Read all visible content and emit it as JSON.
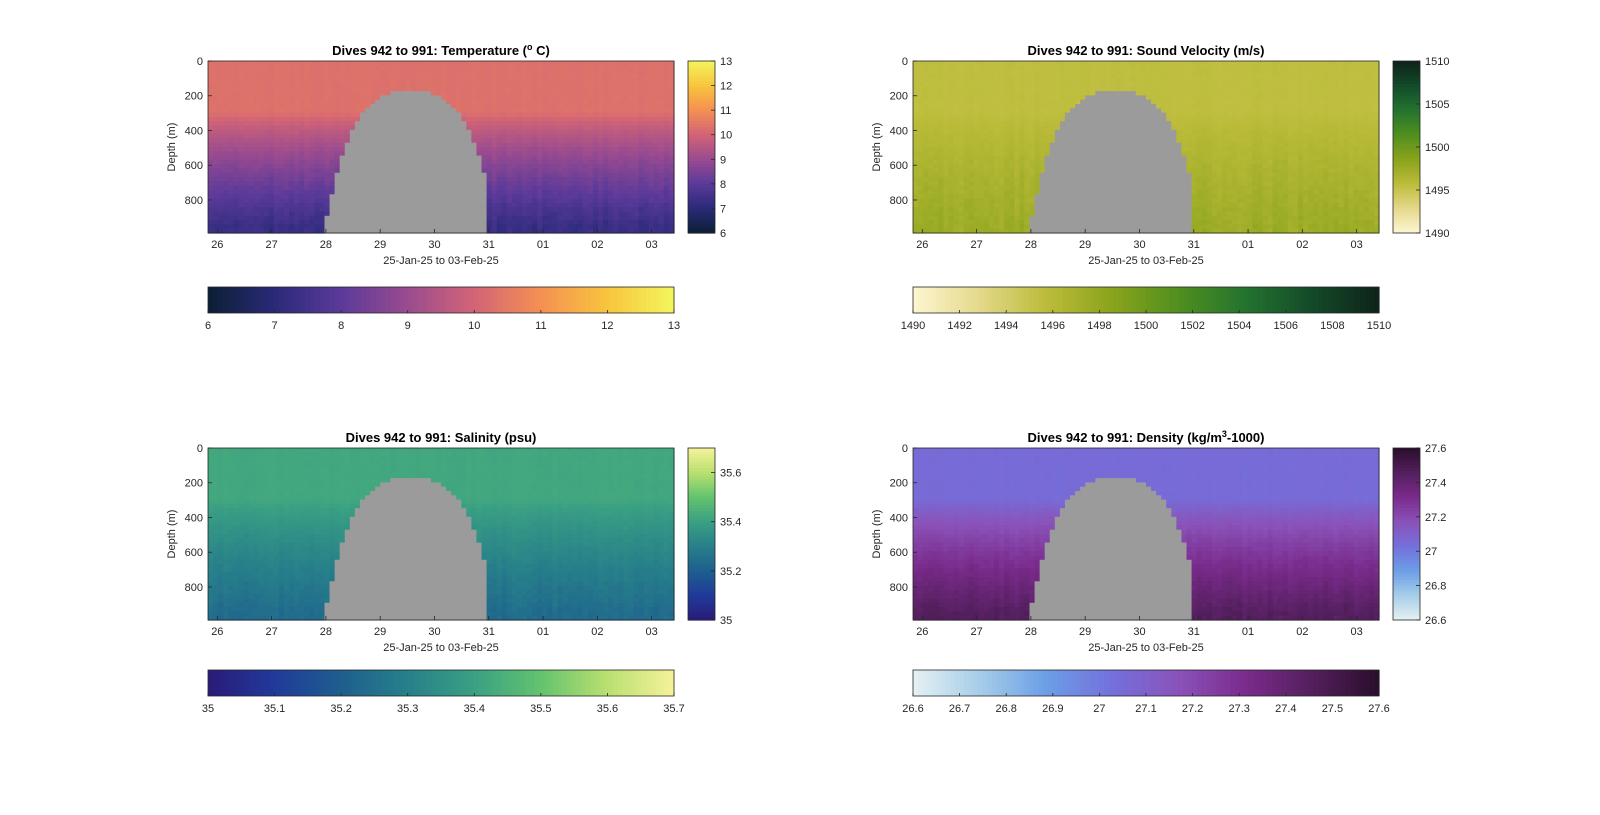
{
  "chart_data": [
    {
      "type": "heatmap",
      "title": "Dives 942 to 991: Temperature (",
      "title_sup": "o",
      "title_tail": " C)",
      "xlabel": "25-Jan-25 to 03-Feb-25",
      "ylabel": "Depth (m)",
      "x_ticks": [
        "26",
        "27",
        "28",
        "29",
        "30",
        "31",
        "01",
        "02",
        "03"
      ],
      "y_ticks": [
        "0",
        "200",
        "400",
        "600",
        "800"
      ],
      "ylim": [
        0,
        990
      ],
      "side_colorbar": {
        "ticks": [
          "13",
          "12",
          "11",
          "10",
          "9",
          "8",
          "7",
          "6"
        ],
        "range": [
          6,
          13
        ]
      },
      "bottom_colorbar": {
        "ticks": [
          "6",
          "7",
          "8",
          "9",
          "10",
          "11",
          "12",
          "13"
        ],
        "range": [
          6,
          13
        ]
      },
      "colormap": [
        "#0b1f35",
        "#2a2a78",
        "#5b3a9a",
        "#9a4b8f",
        "#d26476",
        "#f59052",
        "#f8c53d",
        "#f3f55c"
      ],
      "surface_value": 10.3,
      "deep_value": 7.3,
      "gap_color": "#9b9b9b"
    },
    {
      "type": "heatmap",
      "title": "Dives 942 to 991: Sound Velocity (m/s)",
      "xlabel": "25-Jan-25 to 03-Feb-25",
      "ylabel": "Depth (m)",
      "x_ticks": [
        "26",
        "27",
        "28",
        "29",
        "30",
        "31",
        "01",
        "02",
        "03"
      ],
      "y_ticks": [
        "0",
        "200",
        "400",
        "600",
        "800"
      ],
      "ylim": [
        0,
        990
      ],
      "side_colorbar": {
        "ticks": [
          "1510",
          "1505",
          "1500",
          "1495",
          "1490"
        ],
        "range": [
          1490,
          1510
        ]
      },
      "bottom_colorbar": {
        "ticks": [
          "1490",
          "1492",
          "1494",
          "1496",
          "1498",
          "1500",
          "1502",
          "1504",
          "1506",
          "1508",
          "1510"
        ],
        "range": [
          1490,
          1510
        ]
      },
      "colormap": [
        "#fdf6d2",
        "#e4d88a",
        "#bcbc3a",
        "#8aa31b",
        "#4f8f1f",
        "#23732f",
        "#134a2a",
        "#0e2318"
      ],
      "surface_value": 1495.5,
      "deep_value": 1497.5,
      "gap_color": "#9b9b9b"
    },
    {
      "type": "heatmap",
      "title": "Dives 942 to 991: Salinity (psu)",
      "xlabel": "25-Jan-25 to 03-Feb-25",
      "ylabel": "Depth (m)",
      "x_ticks": [
        "26",
        "27",
        "28",
        "29",
        "30",
        "31",
        "01",
        "02",
        "03"
      ],
      "y_ticks": [
        "0",
        "200",
        "400",
        "600",
        "800"
      ],
      "ylim": [
        0,
        990
      ],
      "side_colorbar": {
        "ticks": [
          "35.6",
          "35.4",
          "35.2",
          "35"
        ],
        "range": [
          35,
          35.7
        ]
      },
      "bottom_colorbar": {
        "ticks": [
          "35",
          "35.1",
          "35.2",
          "35.3",
          "35.4",
          "35.5",
          "35.6",
          "35.7"
        ],
        "range": [
          35,
          35.7
        ]
      },
      "colormap": [
        "#2a1b78",
        "#203a9a",
        "#1e5f8e",
        "#27808a",
        "#3aa083",
        "#63c36e",
        "#b9e070",
        "#f6f29a"
      ],
      "surface_value": 35.42,
      "deep_value": 35.24,
      "gap_color": "#9b9b9b"
    },
    {
      "type": "heatmap",
      "title": "Dives 942 to 991: Density (kg/m",
      "title_sup": "3",
      "title_tail": "-1000)",
      "xlabel": "25-Jan-25 to 03-Feb-25",
      "ylabel": "Depth (m)",
      "x_ticks": [
        "26",
        "27",
        "28",
        "29",
        "30",
        "31",
        "01",
        "02",
        "03"
      ],
      "y_ticks": [
        "0",
        "200",
        "400",
        "600",
        "800"
      ],
      "ylim": [
        0,
        990
      ],
      "side_colorbar": {
        "ticks": [
          "27.6",
          "27.4",
          "27.2",
          "27",
          "26.8",
          "26.6"
        ],
        "range": [
          26.6,
          27.6
        ]
      },
      "bottom_colorbar": {
        "ticks": [
          "26.6",
          "26.7",
          "26.8",
          "26.9",
          "27",
          "27.1",
          "27.2",
          "27.3",
          "27.4",
          "27.5",
          "27.6"
        ],
        "range": [
          26.6,
          27.6
        ]
      },
      "colormap": [
        "#e6f1f3",
        "#a6cde8",
        "#6c9ee6",
        "#7470dc",
        "#8a52b8",
        "#7a2b8c",
        "#531f5c",
        "#2a0e2c"
      ],
      "surface_value": 27.05,
      "deep_value": 27.45,
      "gap_color": "#9b9b9b"
    }
  ]
}
